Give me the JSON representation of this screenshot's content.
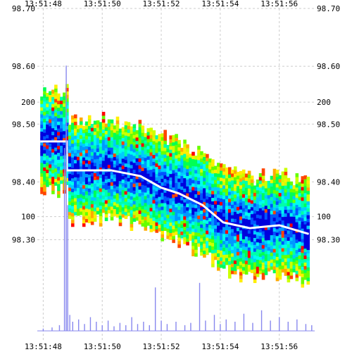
{
  "chart_data": {
    "type": "heatmap",
    "title": "",
    "time_ticks": [
      "13:51:48",
      "13:51:50",
      "13:51:52",
      "13:51:54",
      "13:51:56"
    ],
    "x_range_seconds": [
      47.8,
      57.2
    ],
    "price_axis": {
      "ylim": [
        98.23,
        98.7
      ],
      "tick_values": [
        98.3,
        98.4,
        98.5,
        98.6,
        98.7
      ],
      "tick_labels": [
        "98.30",
        "98.40",
        "98.50",
        "98.60",
        "98.70"
      ]
    },
    "volume_axis": {
      "ylim": [
        0,
        282
      ],
      "tick_values": [
        100,
        200
      ],
      "tick_labels": [
        "100",
        "200"
      ]
    },
    "grid": true,
    "heatmap_palette": [
      "#0000dd",
      "#0055ff",
      "#0099ff",
      "#00ccff",
      "#00ffee",
      "#00ffaa",
      "#00ff55",
      "#66ff00",
      "#ccff00",
      "#ffee00",
      "#ffaa00",
      "#ff4400",
      "#ff0000"
    ],
    "price_path": [
      {
        "t": 47.9,
        "price": 98.47
      },
      {
        "t": 48.8,
        "price": 98.47
      },
      {
        "t": 48.8,
        "price": 98.42
      },
      {
        "t": 50.3,
        "price": 98.42
      },
      {
        "t": 51.3,
        "price": 98.41
      },
      {
        "t": 52.0,
        "price": 98.39
      },
      {
        "t": 52.6,
        "price": 98.38
      },
      {
        "t": 53.4,
        "price": 98.36
      },
      {
        "t": 54.1,
        "price": 98.33
      },
      {
        "t": 55.0,
        "price": 98.32
      },
      {
        "t": 56.0,
        "price": 98.325
      },
      {
        "t": 57.0,
        "price": 98.31
      }
    ],
    "volume_series": [
      {
        "t": 48.0,
        "v": 2
      },
      {
        "t": 48.3,
        "v": 3
      },
      {
        "t": 48.55,
        "v": 5
      },
      {
        "t": 48.72,
        "v": 160
      },
      {
        "t": 48.78,
        "v": 232
      },
      {
        "t": 48.83,
        "v": 110
      },
      {
        "t": 48.9,
        "v": 14
      },
      {
        "t": 49.0,
        "v": 8
      },
      {
        "t": 49.2,
        "v": 10
      },
      {
        "t": 49.4,
        "v": 6
      },
      {
        "t": 49.6,
        "v": 12
      },
      {
        "t": 49.8,
        "v": 8
      },
      {
        "t": 50.0,
        "v": 5
      },
      {
        "t": 50.2,
        "v": 9
      },
      {
        "t": 50.4,
        "v": 4
      },
      {
        "t": 50.6,
        "v": 7
      },
      {
        "t": 50.8,
        "v": 5
      },
      {
        "t": 51.0,
        "v": 12
      },
      {
        "t": 51.2,
        "v": 6
      },
      {
        "t": 51.4,
        "v": 8
      },
      {
        "t": 51.6,
        "v": 5
      },
      {
        "t": 51.8,
        "v": 38
      },
      {
        "t": 52.0,
        "v": 9
      },
      {
        "t": 52.2,
        "v": 6
      },
      {
        "t": 52.5,
        "v": 8
      },
      {
        "t": 52.8,
        "v": 5
      },
      {
        "t": 53.0,
        "v": 7
      },
      {
        "t": 53.3,
        "v": 42
      },
      {
        "t": 53.5,
        "v": 9
      },
      {
        "t": 53.8,
        "v": 14
      },
      {
        "t": 54.0,
        "v": 6
      },
      {
        "t": 54.2,
        "v": 10
      },
      {
        "t": 54.5,
        "v": 8
      },
      {
        "t": 54.8,
        "v": 15
      },
      {
        "t": 55.1,
        "v": 7
      },
      {
        "t": 55.4,
        "v": 18
      },
      {
        "t": 55.7,
        "v": 9
      },
      {
        "t": 56.0,
        "v": 12
      },
      {
        "t": 56.3,
        "v": 8
      },
      {
        "t": 56.6,
        "v": 10
      },
      {
        "t": 56.9,
        "v": 6
      },
      {
        "t": 57.1,
        "v": 5
      }
    ],
    "colors": {
      "grid": "#cccccc",
      "price_line": "#ffffff",
      "volume_bar": "#8888ee"
    }
  }
}
